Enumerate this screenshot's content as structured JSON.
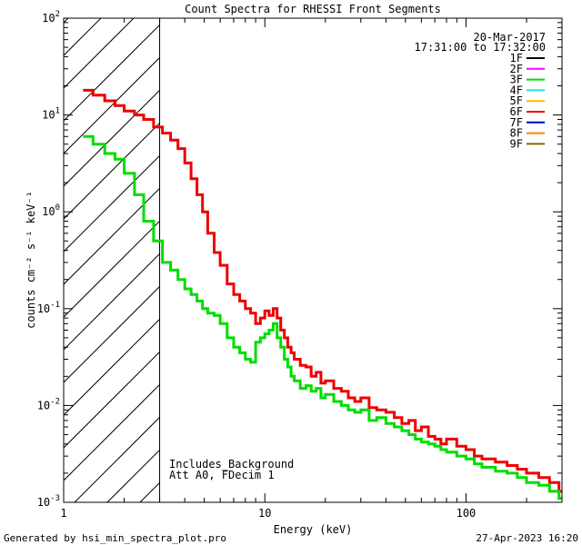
{
  "chart_data": {
    "type": "line",
    "title": "Count Spectra for RHESSI Front Segments",
    "xlabel": "Energy (keV)",
    "ylabel": "counts cm⁻² s⁻¹ keV⁻¹",
    "xscale": "log",
    "yscale": "log",
    "xlim": [
      1,
      300
    ],
    "ylim": [
      0.001,
      100
    ],
    "x_ticks": [
      {
        "value": 1,
        "label": "1"
      },
      {
        "value": 10,
        "label": "10"
      },
      {
        "value": 100,
        "label": "100"
      }
    ],
    "y_ticks": [
      {
        "value": 0.001,
        "base": "10",
        "exp": "-3"
      },
      {
        "value": 0.01,
        "base": "10",
        "exp": "-2"
      },
      {
        "value": 0.1,
        "base": "10",
        "exp": "-1"
      },
      {
        "value": 1,
        "base": "10",
        "exp": "0"
      },
      {
        "value": 10,
        "base": "10",
        "exp": "1"
      },
      {
        "value": 100,
        "base": "10",
        "exp": "2"
      }
    ],
    "date": "20-Mar-2017",
    "time_range": "17:31:00 to 17:32:00",
    "legend": [
      {
        "label": "1F",
        "color": "#000000"
      },
      {
        "label": "2F",
        "color": "#ff00ff"
      },
      {
        "label": "3F",
        "color": "#00dd00"
      },
      {
        "label": "4F",
        "color": "#22ddff"
      },
      {
        "label": "5F",
        "color": "#ffbb00"
      },
      {
        "label": "6F",
        "color": "#ee0000"
      },
      {
        "label": "7F",
        "color": "#0000cc"
      },
      {
        "label": "8F",
        "color": "#ff8800"
      },
      {
        "label": "9F",
        "color": "#886600"
      }
    ],
    "annotations": [
      "Includes_Background",
      "Att A0, FDecim 1"
    ],
    "shaded_region": {
      "x_from": 1.0,
      "x_to": 3.0,
      "style": "diagonal hatch"
    },
    "series": [
      {
        "name": "6F",
        "color": "#ee0000",
        "x": [
          1.25,
          1.4,
          1.6,
          1.8,
          2.0,
          2.25,
          2.5,
          2.8,
          3.1,
          3.4,
          3.7,
          4.0,
          4.3,
          4.6,
          4.9,
          5.2,
          5.6,
          6.0,
          6.5,
          7.0,
          7.5,
          8.0,
          8.5,
          9.0,
          9.5,
          10.0,
          10.5,
          11.0,
          11.5,
          12.0,
          12.5,
          13.0,
          13.5,
          14.0,
          15.0,
          16.0,
          17.0,
          18.0,
          19.0,
          20.0,
          22.0,
          24.0,
          26.0,
          28.0,
          30.0,
          33.0,
          36.0,
          40.0,
          44.0,
          48.0,
          52.0,
          56.0,
          60.0,
          65.0,
          70.0,
          75.0,
          80.0,
          90.0,
          100.0,
          110.0,
          120.0,
          140.0,
          160.0,
          180.0,
          200.0,
          230.0,
          260.0,
          290.0
        ],
        "y": [
          18,
          16,
          14,
          12.5,
          11,
          10,
          9,
          7.5,
          6.5,
          5.5,
          4.5,
          3.2,
          2.2,
          1.5,
          1.0,
          0.6,
          0.38,
          0.28,
          0.18,
          0.14,
          0.12,
          0.1,
          0.09,
          0.07,
          0.08,
          0.095,
          0.085,
          0.1,
          0.08,
          0.06,
          0.05,
          0.04,
          0.035,
          0.03,
          0.026,
          0.025,
          0.02,
          0.022,
          0.017,
          0.018,
          0.015,
          0.014,
          0.012,
          0.011,
          0.012,
          0.0095,
          0.009,
          0.0085,
          0.0075,
          0.0065,
          0.007,
          0.0055,
          0.006,
          0.0048,
          0.0045,
          0.004,
          0.0045,
          0.0038,
          0.0035,
          0.003,
          0.0028,
          0.0026,
          0.0024,
          0.0022,
          0.002,
          0.0018,
          0.0016,
          0.0013
        ]
      },
      {
        "name": "3F",
        "color": "#00dd00",
        "x": [
          1.25,
          1.4,
          1.6,
          1.8,
          2.0,
          2.25,
          2.5,
          2.8,
          3.1,
          3.4,
          3.7,
          4.0,
          4.3,
          4.6,
          4.9,
          5.2,
          5.6,
          6.0,
          6.5,
          7.0,
          7.5,
          8.0,
          8.5,
          9.0,
          9.5,
          10.0,
          10.5,
          11.0,
          11.5,
          12.0,
          12.5,
          13.0,
          13.5,
          14.0,
          15.0,
          16.0,
          17.0,
          18.0,
          19.0,
          20.0,
          22.0,
          24.0,
          26.0,
          28.0,
          30.0,
          33.0,
          36.0,
          40.0,
          44.0,
          48.0,
          52.0,
          56.0,
          60.0,
          65.0,
          70.0,
          75.0,
          80.0,
          90.0,
          100.0,
          110.0,
          120.0,
          140.0,
          160.0,
          180.0,
          200.0,
          230.0,
          260.0,
          290.0
        ],
        "y": [
          6,
          5,
          4,
          3.5,
          2.5,
          1.5,
          0.8,
          0.5,
          0.3,
          0.25,
          0.2,
          0.16,
          0.14,
          0.12,
          0.1,
          0.09,
          0.085,
          0.07,
          0.05,
          0.04,
          0.035,
          0.03,
          0.028,
          0.045,
          0.05,
          0.055,
          0.06,
          0.07,
          0.05,
          0.04,
          0.03,
          0.025,
          0.02,
          0.018,
          0.015,
          0.016,
          0.014,
          0.015,
          0.012,
          0.013,
          0.011,
          0.01,
          0.009,
          0.0085,
          0.009,
          0.007,
          0.0075,
          0.0065,
          0.006,
          0.0055,
          0.005,
          0.0045,
          0.0042,
          0.004,
          0.0038,
          0.0035,
          0.0033,
          0.003,
          0.0028,
          0.0025,
          0.0023,
          0.0021,
          0.002,
          0.0018,
          0.0016,
          0.0015,
          0.0013,
          0.0011
        ]
      }
    ]
  },
  "footer": {
    "generated_by": "Generated by hsi_min_spectra_plot.pro",
    "timestamp": "27-Apr-2023 16:20"
  }
}
